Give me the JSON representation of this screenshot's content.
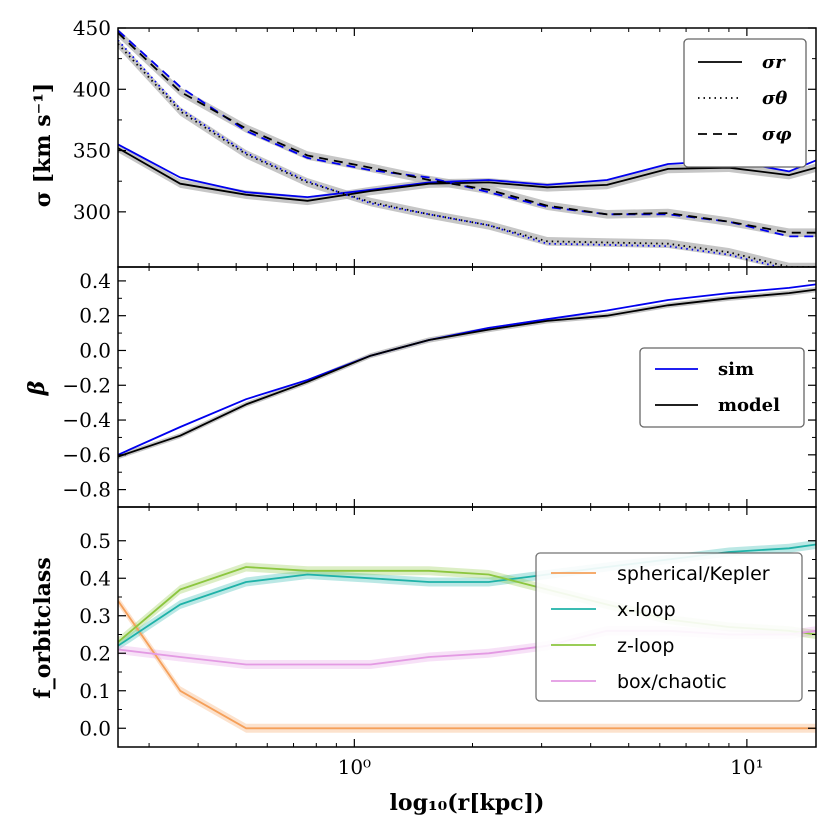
{
  "chart_data": [
    {
      "type": "line",
      "panel": "top",
      "ylabel": "σ [km s⁻¹]",
      "ylim": [
        255,
        450
      ],
      "yticks": [
        300,
        350,
        400,
        450
      ],
      "ytick_labels": [
        "300",
        "350",
        "400",
        "450"
      ],
      "x": [
        0.25,
        0.36,
        0.53,
        0.76,
        1.1,
        1.55,
        2.2,
        3.1,
        4.4,
        6.3,
        9.0,
        12.8,
        15
      ],
      "series": [
        {
          "name": "sim σr",
          "color": "#0000ee",
          "style": "solid",
          "values": [
            355,
            328,
            316,
            312,
            318,
            324,
            326,
            322,
            326,
            339,
            342,
            333,
            342
          ]
        },
        {
          "name": "model σr",
          "color": "#000000",
          "style": "solid",
          "values": [
            352,
            323,
            314,
            309,
            317,
            323,
            324,
            320,
            322,
            335,
            336,
            330,
            336
          ]
        },
        {
          "name": "sim σθ",
          "color": "#0000ee",
          "style": "dotted",
          "values": [
            440,
            384,
            348,
            325,
            307,
            298,
            289,
            274,
            273,
            272,
            265,
            253,
            253
          ]
        },
        {
          "name": "model σθ",
          "color": "#000000",
          "style": "dotted",
          "values": [
            437,
            382,
            347,
            324,
            308,
            298,
            289,
            276,
            275,
            274,
            267,
            255,
            255
          ]
        },
        {
          "name": "sim σφ",
          "color": "#0000ee",
          "style": "dashed",
          "values": [
            448,
            402,
            366,
            344,
            334,
            328,
            316,
            304,
            298,
            298,
            292,
            280,
            280
          ]
        },
        {
          "name": "model σφ",
          "color": "#000000",
          "style": "dashed",
          "values": [
            446,
            398,
            368,
            346,
            336,
            326,
            318,
            305,
            298,
            299,
            292,
            283,
            283
          ]
        }
      ],
      "legend": [
        {
          "label": "σr",
          "style": "solid"
        },
        {
          "label": "σθ",
          "style": "dotted"
        },
        {
          "label": "σφ",
          "style": "dashed"
        }
      ]
    },
    {
      "type": "line",
      "panel": "middle",
      "ylabel": "β",
      "ylim": [
        -0.9,
        0.48
      ],
      "yticks": [
        -0.8,
        -0.6,
        -0.4,
        -0.2,
        0.0,
        0.2,
        0.4
      ],
      "ytick_labels": [
        "−0.8",
        "−0.6",
        "−0.4",
        "−0.2",
        "0.0",
        "0.2",
        "0.4"
      ],
      "x": [
        0.25,
        0.36,
        0.53,
        0.76,
        1.1,
        1.55,
        2.2,
        3.1,
        4.4,
        6.3,
        9.0,
        12.8,
        15
      ],
      "series": [
        {
          "name": "sim",
          "color": "#0000ee",
          "values": [
            -0.6,
            -0.44,
            -0.28,
            -0.17,
            -0.03,
            0.06,
            0.13,
            0.18,
            0.23,
            0.29,
            0.33,
            0.36,
            0.38
          ]
        },
        {
          "name": "model",
          "color": "#000000",
          "values": [
            -0.61,
            -0.49,
            -0.31,
            -0.18,
            -0.03,
            0.06,
            0.12,
            0.17,
            0.2,
            0.26,
            0.3,
            0.33,
            0.35
          ]
        }
      ],
      "legend": [
        {
          "label": "sim",
          "color": "#0000ee"
        },
        {
          "label": "model",
          "color": "#000000"
        }
      ]
    },
    {
      "type": "line",
      "panel": "bottom",
      "ylabel": "f_orbitclass",
      "ylim": [
        -0.05,
        0.59
      ],
      "yticks": [
        0.0,
        0.1,
        0.2,
        0.3,
        0.4,
        0.5
      ],
      "ytick_labels": [
        "0.0",
        "0.1",
        "0.2",
        "0.3",
        "0.4",
        "0.5"
      ],
      "x": [
        0.25,
        0.36,
        0.53,
        0.76,
        1.1,
        1.55,
        2.2,
        3.1,
        4.4,
        6.3,
        9.0,
        12.8,
        15
      ],
      "series": [
        {
          "name": "spherical/Kepler",
          "color": "#f5a05a",
          "values": [
            0.34,
            0.1,
            0.0,
            0.0,
            0.0,
            0.0,
            0.0,
            0.0,
            0.0,
            0.0,
            0.0,
            0.0,
            0.0
          ]
        },
        {
          "name": "x-loop",
          "color": "#1fb2a8",
          "values": [
            0.22,
            0.33,
            0.39,
            0.41,
            0.4,
            0.39,
            0.39,
            0.41,
            0.43,
            0.45,
            0.47,
            0.48,
            0.49
          ]
        },
        {
          "name": "z-loop",
          "color": "#8cc63f",
          "values": [
            0.23,
            0.37,
            0.43,
            0.42,
            0.42,
            0.42,
            0.41,
            0.37,
            0.33,
            0.29,
            0.27,
            0.26,
            0.25
          ]
        },
        {
          "name": "box/chaotic",
          "color": "#e39ae3",
          "values": [
            0.21,
            0.19,
            0.17,
            0.17,
            0.17,
            0.19,
            0.2,
            0.22,
            0.26,
            0.26,
            0.25,
            0.25,
            0.26
          ]
        }
      ],
      "legend": [
        {
          "label": "spherical/Kepler",
          "color": "#f5a05a"
        },
        {
          "label": "x-loop",
          "color": "#1fb2a8"
        },
        {
          "label": "z-loop",
          "color": "#8cc63f"
        },
        {
          "label": "box/chaotic",
          "color": "#e39ae3"
        }
      ]
    }
  ],
  "xaxis": {
    "label": "log₁₀(r[kpc])",
    "xlim": [
      0.25,
      15
    ],
    "scale": "log",
    "major_ticks": [
      1,
      10
    ],
    "major_tick_labels": [
      "10⁰",
      "10¹"
    ]
  }
}
